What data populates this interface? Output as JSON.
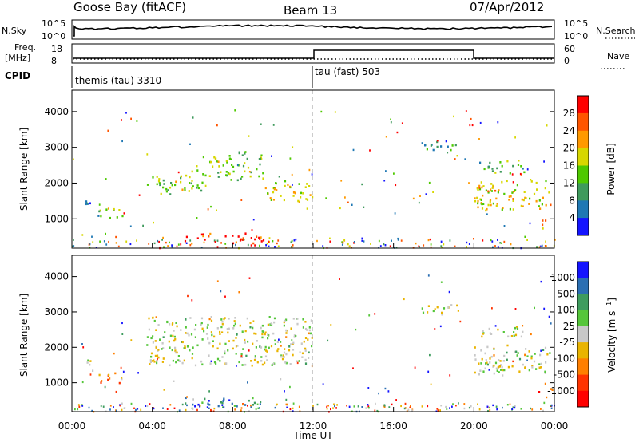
{
  "header": {
    "station": "Goose Bay (fitACF)",
    "beam": "Beam 13",
    "date": "07/Apr/2012"
  },
  "summary": {
    "nsky_label": "N.Sky",
    "nsearch_label": "N.Search",
    "noise_ticks": [
      "10^5",
      "10^0"
    ],
    "freq_label_1": "Freq.",
    "freq_label_2": "[MHz]",
    "freq_ticks": [
      "18",
      "8"
    ],
    "nave_label": "Nave",
    "nave_ticks": [
      "60",
      "0"
    ],
    "cpid_label": "CPID",
    "cpid_segments": [
      {
        "label": "themis (tau) 3310",
        "start_hour": 0
      },
      {
        "label": "tau (fast) 503",
        "start_hour": 12
      }
    ]
  },
  "time_axis": {
    "label": "Time UT",
    "ticks": [
      "00:00",
      "04:00",
      "08:00",
      "12:00",
      "16:00",
      "20:00",
      "00:00"
    ]
  },
  "chart_data": [
    {
      "type": "heatmap",
      "name": "power",
      "ylabel": "Slant Range [km]",
      "yticks": [
        "4000",
        "3000",
        "2000",
        "1000"
      ],
      "ytick_values": [
        4000,
        3000,
        2000,
        1000
      ],
      "ylim": [
        180,
        4600
      ],
      "xlim_hours": [
        0,
        24
      ],
      "colorbar_label": "Power [dB]",
      "colorbar_ticks": [
        "28",
        "24",
        "20",
        "16",
        "12",
        "8",
        "4"
      ],
      "colorbar_colors": [
        "#ff0000",
        "#ff5500",
        "#ff9900",
        "#d7d700",
        "#4ec900",
        "#3f9a5c",
        "#1f78b4",
        "#1414ff"
      ],
      "regions": [
        {
          "t": [
            0.5,
            1.0
          ],
          "r": [
            1300,
            1700
          ],
          "level": 0.28
        },
        {
          "t": [
            1.1,
            2.5
          ],
          "r": [
            1000,
            1300
          ],
          "level": 0.4
        },
        {
          "t": [
            3.7,
            5.0
          ],
          "r": [
            1700,
            2300
          ],
          "level": 0.45
        },
        {
          "t": [
            5.0,
            6.5
          ],
          "r": [
            1800,
            2400
          ],
          "level": 0.5
        },
        {
          "t": [
            6.5,
            8.2
          ],
          "r": [
            2100,
            2800
          ],
          "level": 0.48
        },
        {
          "t": [
            8.2,
            9.5
          ],
          "r": [
            2100,
            2900
          ],
          "level": 0.42
        },
        {
          "t": [
            9.5,
            12.0
          ],
          "r": [
            1500,
            2100
          ],
          "level": 0.55
        },
        {
          "t": [
            5.5,
            9.5
          ],
          "r": [
            330,
            620
          ],
          "level": 0.9
        },
        {
          "t": [
            17.3,
            19.2
          ],
          "r": [
            2950,
            3250
          ],
          "level": 0.35
        },
        {
          "t": [
            20.0,
            23.8
          ],
          "r": [
            1250,
            2100
          ],
          "level": 0.6
        },
        {
          "t": [
            20.2,
            22.5
          ],
          "r": [
            2300,
            2650
          ],
          "level": 0.4
        },
        {
          "t": [
            23.2,
            23.9
          ],
          "r": [
            750,
            1000
          ],
          "level": 0.75
        }
      ]
    },
    {
      "type": "heatmap",
      "name": "velocity",
      "ylabel": "Slant Range [km]",
      "yticks": [
        "4000",
        "3000",
        "2000",
        "1000"
      ],
      "ytick_values": [
        4000,
        3000,
        2000,
        1000
      ],
      "ylim": [
        180,
        4600
      ],
      "xlim_hours": [
        0,
        24
      ],
      "colorbar_label": "Velocity [m s-1]",
      "colorbar_ticks": [
        "1000",
        "500",
        "100",
        "25",
        "-25",
        "-100",
        "-500",
        "-1000"
      ],
      "colorbar_colors": [
        "#1414ff",
        "#2b6fb3",
        "#3e9c5e",
        "#55c63a",
        "#c8c8c8",
        "#e9b400",
        "#ff7f00",
        "#ff3300",
        "#ff0000"
      ],
      "regions": [
        {
          "t": [
            0.5,
            1.0
          ],
          "r": [
            1300,
            1700
          ],
          "level": 0.45
        },
        {
          "t": [
            1.1,
            2.5
          ],
          "r": [
            1000,
            1300
          ],
          "level": 0.3
        },
        {
          "t": [
            3.7,
            12.0
          ],
          "r": [
            1500,
            2900
          ],
          "level": 0.5
        },
        {
          "t": [
            5.5,
            9.5
          ],
          "r": [
            330,
            620
          ],
          "level": 0.78
        },
        {
          "t": [
            17.3,
            19.2
          ],
          "r": [
            2950,
            3250
          ],
          "level": 0.5
        },
        {
          "t": [
            20.0,
            23.8
          ],
          "r": [
            1250,
            2100
          ],
          "level": 0.5
        },
        {
          "t": [
            20.2,
            22.5
          ],
          "r": [
            2300,
            2650
          ],
          "level": 0.5
        },
        {
          "t": [
            23.2,
            23.9
          ],
          "r": [
            750,
            1000
          ],
          "level": 0.2
        }
      ]
    }
  ]
}
